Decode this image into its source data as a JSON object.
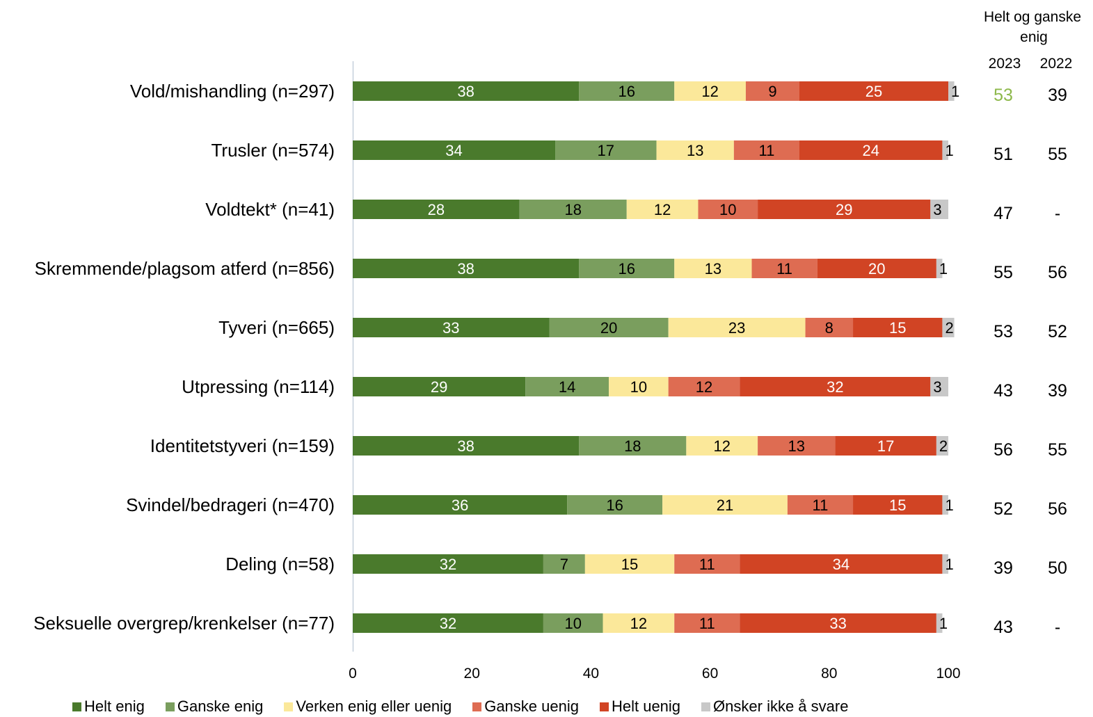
{
  "chart_data": {
    "type": "bar",
    "orientation": "horizontal",
    "stacked": true,
    "categories": [
      "Vold/mishandling (n=297)",
      "Trusler (n=574)",
      "Voldtekt* (n=41)",
      "Skremmende/plagsom atferd (n=856)",
      "Tyveri (n=665)",
      "Utpressing (n=114)",
      "Identitetstyveri (n=159)",
      "Svindel/bedrageri (n=470)",
      "Deling (n=58)",
      "Seksuelle overgrep/krenkelser (n=77)"
    ],
    "series": [
      {
        "name": "Helt enig",
        "color": "#4a7a2c",
        "label_color": "#ffffff",
        "values": [
          38,
          34,
          28,
          38,
          33,
          29,
          38,
          36,
          32,
          32
        ]
      },
      {
        "name": "Ganske enig",
        "color": "#7a9e5e",
        "label_color": "#000000",
        "values": [
          16,
          17,
          18,
          16,
          20,
          14,
          18,
          16,
          7,
          10
        ]
      },
      {
        "name": "Verken enig eller uenig",
        "color": "#fbe89a",
        "label_color": "#000000",
        "values": [
          12,
          13,
          12,
          13,
          23,
          10,
          12,
          21,
          15,
          12
        ]
      },
      {
        "name": "Ganske uenig",
        "color": "#de6c52",
        "label_color": "#000000",
        "values": [
          9,
          11,
          10,
          11,
          8,
          12,
          13,
          11,
          11,
          11
        ]
      },
      {
        "name": "Helt uenig",
        "color": "#d14424",
        "label_color": "#ffffff",
        "values": [
          25,
          24,
          29,
          20,
          15,
          32,
          17,
          15,
          34,
          33
        ]
      },
      {
        "name": "Ønsker ikke å svare",
        "color": "#c8c8c8",
        "label_color": "#000000",
        "values": [
          1,
          1,
          3,
          1,
          2,
          3,
          2,
          1,
          1,
          1
        ]
      }
    ],
    "xlim": [
      0,
      100
    ],
    "xticks": [
      "0",
      "20",
      "40",
      "60",
      "80",
      "100"
    ],
    "legend_position": "bottom",
    "side_table": {
      "title": "Helt og ganske enig",
      "columns": [
        "2023",
        "2022"
      ],
      "values_2023": [
        "53",
        "51",
        "47",
        "55",
        "53",
        "43",
        "56",
        "52",
        "39",
        "43"
      ],
      "values_2022": [
        "39",
        "55",
        "-",
        "56",
        "52",
        "39",
        "55",
        "56",
        "50",
        "-"
      ],
      "highlight_color": "#8db84a"
    }
  }
}
